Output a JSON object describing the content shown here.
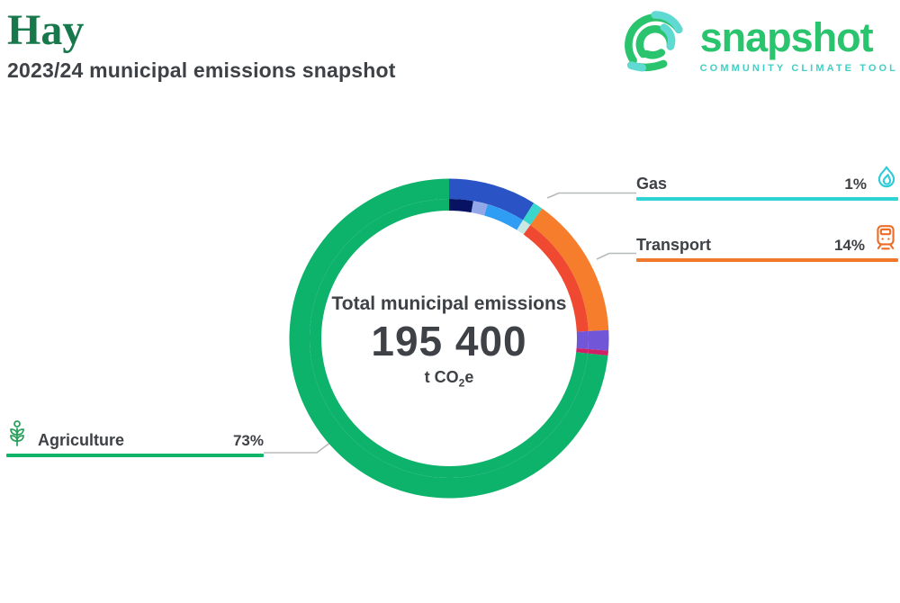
{
  "header": {
    "title": "Hay",
    "subtitle": "2023/24 municipal emissions snapshot"
  },
  "logo": {
    "word": "snapshot",
    "tagline": "COMMUNITY CLIMATE TOOL",
    "green": "#2bc46e",
    "teal": "#41cfc5"
  },
  "donut": {
    "center_label": "Total municipal emissions",
    "total": "195 400",
    "unit_prefix": "t CO",
    "unit_sub": "2",
    "unit_suffix": "e"
  },
  "callouts": [
    {
      "id": "gas",
      "label": "Gas",
      "value": "1%",
      "color": "#2ed3d2",
      "icon": "flame-icon",
      "icon_color": "#2fcbd9"
    },
    {
      "id": "transport",
      "label": "Transport",
      "value": "14%",
      "color": "#f0782a",
      "icon": "train-icon",
      "icon_color": "#eb6d28"
    },
    {
      "id": "agriculture",
      "label": "Agriculture",
      "value": "73%",
      "color": "#10b569",
      "icon": "wheat-icon",
      "icon_color": "#2da060"
    }
  ],
  "chart_data": {
    "type": "donut",
    "title": "Total municipal emissions",
    "total_t_co2e": "195 400",
    "unit": "t CO2e",
    "legend_position": "callout-labels",
    "outer_segments": [
      {
        "label": "",
        "color": "#2a53c6",
        "start_deg": 0,
        "end_deg": 32,
        "pct_est": 8.9
      },
      {
        "label": "Gas",
        "color": "#38d6cc",
        "start_deg": 32,
        "end_deg": 35.6,
        "pct": 1
      },
      {
        "label": "Transport",
        "color": "#f57d2c",
        "start_deg": 35.6,
        "end_deg": 87,
        "pct": 14
      },
      {
        "label": "",
        "color": "#7156d8",
        "start_deg": 87,
        "end_deg": 94.4,
        "pct_est": 2.1
      },
      {
        "label": "",
        "color": "#ce2166",
        "start_deg": 94.4,
        "end_deg": 96.2,
        "pct_est": 0.5
      },
      {
        "label": "Agriculture",
        "color": "#0db26b",
        "start_deg": 96.2,
        "end_deg": 360,
        "pct": 73
      }
    ],
    "inner_segments": [
      {
        "color": "#071263",
        "start_deg": 0,
        "end_deg": 10
      },
      {
        "color": "#92a7e8",
        "start_deg": 10,
        "end_deg": 16
      },
      {
        "color": "#2f9df3",
        "start_deg": 16,
        "end_deg": 32
      },
      {
        "color": "#c8e8e4",
        "start_deg": 32,
        "end_deg": 35.6
      },
      {
        "color": "#ef4a31",
        "start_deg": 35.6,
        "end_deg": 87
      },
      {
        "color": "#7156d8",
        "start_deg": 87,
        "end_deg": 94.4
      },
      {
        "color": "#ce2166",
        "start_deg": 94.4,
        "end_deg": 96.2
      },
      {
        "color": "#0db26b",
        "start_deg": 96.2,
        "end_deg": 360
      }
    ]
  }
}
